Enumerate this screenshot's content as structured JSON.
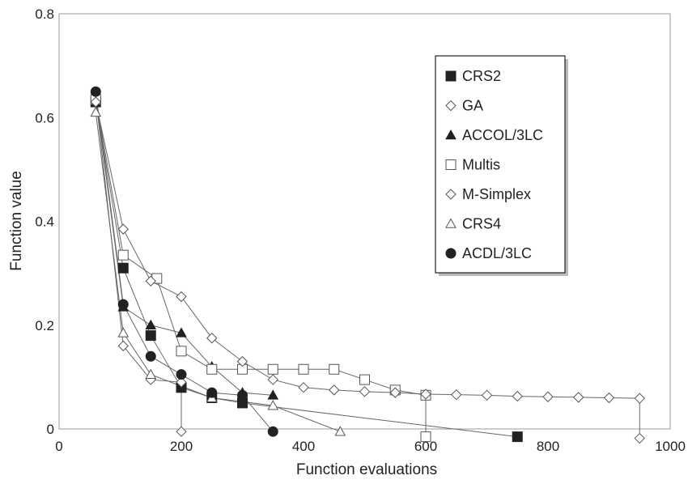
{
  "chart_data": {
    "type": "line",
    "title": "",
    "xlabel": "Function evaluations",
    "ylabel": "Function value",
    "xlim": [
      0,
      1000
    ],
    "ylim": [
      0,
      0.8
    ],
    "xticks": [
      "0",
      "200",
      "400",
      "600",
      "800",
      "1000"
    ],
    "yticks": [
      "0",
      "0.2",
      "0.4",
      "0.6",
      "0.8"
    ],
    "grid": false,
    "legend_position": "top-right",
    "series": [
      {
        "name": "CRS2",
        "marker": "filled-square",
        "x": [
          60,
          105,
          150,
          200,
          200,
          250,
          300,
          750
        ],
        "y": [
          0.63,
          0.31,
          0.18,
          0.08,
          0.08,
          0.06,
          0.05,
          -0.015
        ]
      },
      {
        "name": "GA",
        "marker": "open-diamond",
        "x": [
          60,
          105,
          150,
          200,
          200
        ],
        "y": [
          0.64,
          0.16,
          0.095,
          0.09,
          -0.005
        ]
      },
      {
        "name": "ACCOL/3LC",
        "marker": "filled-triangle",
        "x": [
          60,
          105,
          150,
          200,
          250,
          300,
          350
        ],
        "y": [
          0.64,
          0.235,
          0.2,
          0.185,
          0.12,
          0.07,
          0.065
        ]
      },
      {
        "name": "Multis",
        "marker": "open-square",
        "x": [
          60,
          105,
          160,
          200,
          250,
          300,
          350,
          400,
          450,
          500,
          550,
          600,
          600
        ],
        "y": [
          0.635,
          0.335,
          0.29,
          0.15,
          0.115,
          0.115,
          0.115,
          0.115,
          0.115,
          0.095,
          0.075,
          0.065,
          -0.015
        ]
      },
      {
        "name": "M-Simplex",
        "marker": "open-diamond",
        "x": [
          60,
          105,
          150,
          200,
          250,
          300,
          350,
          400,
          450,
          500,
          550,
          600,
          650,
          700,
          750,
          800,
          850,
          900,
          950,
          950
        ],
        "y": [
          0.63,
          0.385,
          0.285,
          0.255,
          0.175,
          0.13,
          0.095,
          0.08,
          0.075,
          0.072,
          0.07,
          0.067,
          0.066,
          0.065,
          0.063,
          0.062,
          0.061,
          0.06,
          0.059,
          -0.018
        ]
      },
      {
        "name": "CRS4",
        "marker": "open-triangle",
        "x": [
          60,
          105,
          150,
          250,
          350,
          460
        ],
        "y": [
          0.61,
          0.185,
          0.105,
          0.06,
          0.045,
          -0.005
        ]
      },
      {
        "name": "ACDL/3LC",
        "marker": "filled-circle",
        "x": [
          60,
          105,
          150,
          200,
          250,
          300,
          350
        ],
        "y": [
          0.65,
          0.24,
          0.14,
          0.105,
          0.07,
          0.065,
          -0.005
        ]
      }
    ]
  }
}
